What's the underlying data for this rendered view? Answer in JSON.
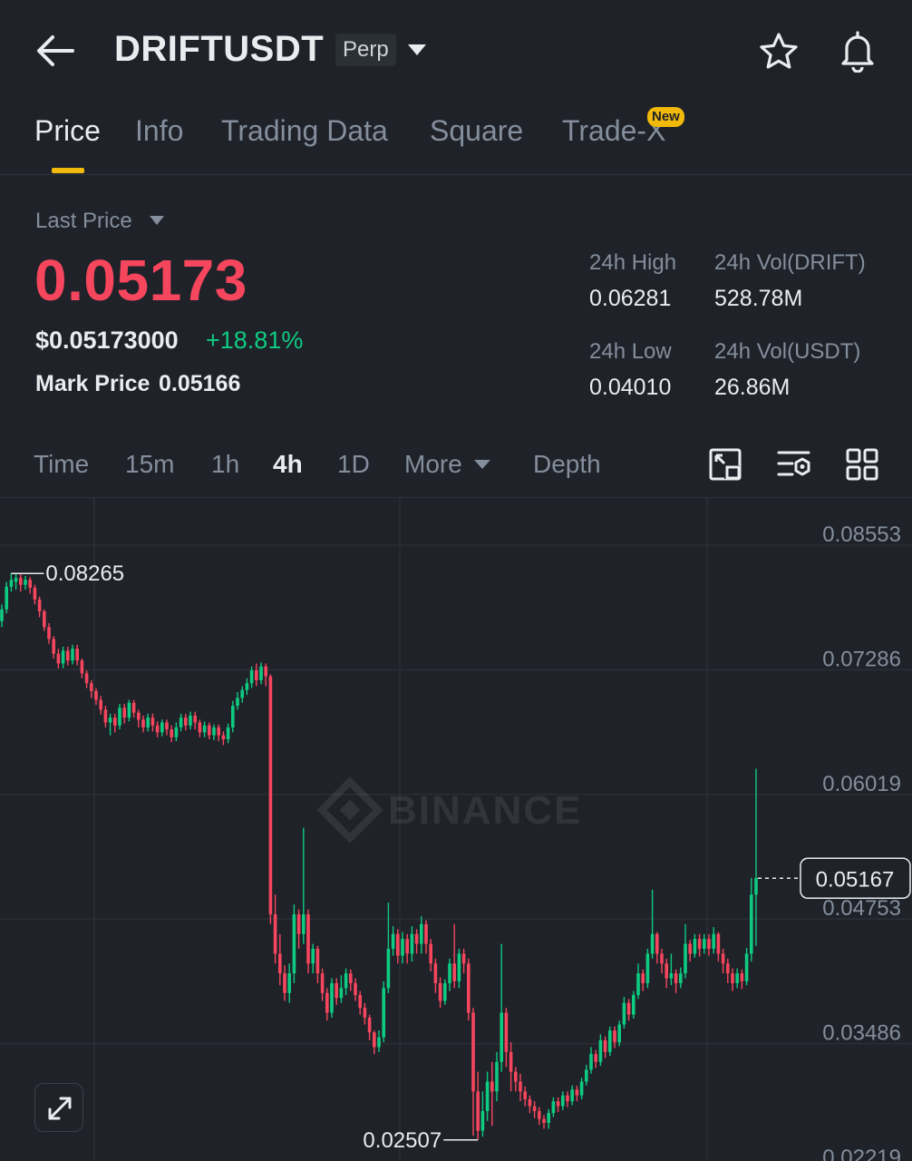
{
  "header": {
    "symbol": "DRIFTUSDT",
    "contract_type": "Perp"
  },
  "tabs": [
    {
      "label": "Price",
      "active": true
    },
    {
      "label": "Info"
    },
    {
      "label": "Trading Data"
    },
    {
      "label": "Square"
    },
    {
      "label": "Trade-X",
      "badge": "New"
    }
  ],
  "price": {
    "last_price_label": "Last Price",
    "last_price": "0.05173",
    "usd_price": "$0.05173000",
    "change_pct": "+18.81%",
    "mark_price_label": "Mark Price",
    "mark_price": "0.05166"
  },
  "stats": {
    "high_label": "24h High",
    "high": "0.06281",
    "vol_base_label": "24h Vol(DRIFT)",
    "vol_base": "528.78M",
    "low_label": "24h Low",
    "low": "0.04010",
    "vol_quote_label": "24h Vol(USDT)",
    "vol_quote": "26.86M"
  },
  "timeframes": {
    "time": "Time",
    "m15": "15m",
    "h1": "1h",
    "h4": "4h",
    "d1": "1D",
    "more": "More",
    "depth": "Depth",
    "active": "4h"
  },
  "toolbar_icons": [
    "chart-settings-icon",
    "indicator-settings-icon",
    "layout-grid-icon"
  ],
  "colors": {
    "background": "#1f2229",
    "up": "#0ecb81",
    "down": "#f6465d",
    "accent": "#f0b90b",
    "muted": "#848e9c"
  },
  "chart_data": {
    "type": "candlestick",
    "interval": "4h",
    "watermark": "BINANCE",
    "y_ticks": [
      "0.08553",
      "0.07286",
      "0.06019",
      "0.04753",
      "0.03486",
      "0.02219"
    ],
    "ylim": [
      0.02219,
      0.08553
    ],
    "high_marker": "0.08265",
    "low_marker": "0.02507",
    "current_price_tag": "0.05167",
    "candles": [
      [
        0.0778,
        0.079,
        0.0772,
        0.0795
      ],
      [
        0.079,
        0.0813,
        0.0786,
        0.0818
      ],
      [
        0.0813,
        0.082,
        0.0808,
        0.0827
      ],
      [
        0.0818,
        0.0822,
        0.081,
        0.0827
      ],
      [
        0.0822,
        0.0815,
        0.0808,
        0.0826
      ],
      [
        0.0815,
        0.082,
        0.081,
        0.0824
      ],
      [
        0.082,
        0.0812,
        0.0806,
        0.0823
      ],
      [
        0.0812,
        0.08,
        0.0795,
        0.0815
      ],
      [
        0.08,
        0.0788,
        0.0782,
        0.0803
      ],
      [
        0.0788,
        0.0772,
        0.0768,
        0.079
      ],
      [
        0.0772,
        0.076,
        0.0755,
        0.0776
      ],
      [
        0.076,
        0.0745,
        0.074,
        0.0763
      ],
      [
        0.0745,
        0.0735,
        0.073,
        0.075
      ],
      [
        0.0735,
        0.0748,
        0.073,
        0.0752
      ],
      [
        0.0748,
        0.0738,
        0.0733,
        0.0752
      ],
      [
        0.0738,
        0.075,
        0.0734,
        0.0754
      ],
      [
        0.075,
        0.0738,
        0.0733,
        0.0754
      ],
      [
        0.0738,
        0.0725,
        0.072,
        0.074
      ],
      [
        0.0725,
        0.0715,
        0.071,
        0.0728
      ],
      [
        0.0715,
        0.0707,
        0.07,
        0.0718
      ],
      [
        0.0707,
        0.0698,
        0.0693,
        0.071
      ],
      [
        0.0698,
        0.0688,
        0.0683,
        0.0702
      ],
      [
        0.0688,
        0.0675,
        0.067,
        0.0692
      ],
      [
        0.0675,
        0.068,
        0.0662,
        0.0684
      ],
      [
        0.068,
        0.0672,
        0.0665,
        0.0684
      ],
      [
        0.0672,
        0.069,
        0.0668,
        0.0694
      ],
      [
        0.069,
        0.068,
        0.0674,
        0.0694
      ],
      [
        0.068,
        0.0695,
        0.0676,
        0.0698
      ],
      [
        0.0695,
        0.0685,
        0.068,
        0.0698
      ],
      [
        0.0685,
        0.0678,
        0.067,
        0.0688
      ],
      [
        0.0678,
        0.067,
        0.0665,
        0.0682
      ],
      [
        0.067,
        0.068,
        0.0666,
        0.0684
      ],
      [
        0.068,
        0.0672,
        0.0666,
        0.0684
      ],
      [
        0.0672,
        0.0665,
        0.066,
        0.0676
      ],
      [
        0.0665,
        0.0675,
        0.0661,
        0.0678
      ],
      [
        0.0675,
        0.0668,
        0.0662,
        0.0678
      ],
      [
        0.0668,
        0.066,
        0.0655,
        0.0672
      ],
      [
        0.066,
        0.067,
        0.0656,
        0.0675
      ],
      [
        0.067,
        0.068,
        0.0666,
        0.0684
      ],
      [
        0.068,
        0.0672,
        0.0667,
        0.0684
      ],
      [
        0.0672,
        0.0682,
        0.0668,
        0.0686
      ],
      [
        0.0682,
        0.0675,
        0.0668,
        0.0686
      ],
      [
        0.0675,
        0.0665,
        0.066,
        0.0678
      ],
      [
        0.0665,
        0.0672,
        0.066,
        0.0676
      ],
      [
        0.0672,
        0.0662,
        0.0658,
        0.0675
      ],
      [
        0.0662,
        0.067,
        0.0657,
        0.0673
      ],
      [
        0.067,
        0.0662,
        0.0656,
        0.0673
      ],
      [
        0.0662,
        0.0658,
        0.0652,
        0.0666
      ],
      [
        0.0658,
        0.067,
        0.0654,
        0.0674
      ],
      [
        0.067,
        0.0692,
        0.0665,
        0.0697
      ],
      [
        0.0692,
        0.07,
        0.0688,
        0.0706
      ],
      [
        0.07,
        0.0708,
        0.0695,
        0.0712
      ],
      [
        0.0708,
        0.0715,
        0.0703,
        0.072
      ],
      [
        0.0715,
        0.0728,
        0.071,
        0.0732
      ],
      [
        0.0728,
        0.0718,
        0.0712,
        0.0735
      ],
      [
        0.0718,
        0.0732,
        0.0714,
        0.0736
      ],
      [
        0.0732,
        0.0722,
        0.0712,
        0.0735
      ],
      [
        0.0722,
        0.048,
        0.047,
        0.0724
      ],
      [
        0.048,
        0.044,
        0.043,
        0.05
      ],
      [
        0.044,
        0.042,
        0.0408,
        0.046
      ],
      [
        0.042,
        0.04,
        0.0392,
        0.0428
      ],
      [
        0.04,
        0.042,
        0.039,
        0.043
      ],
      [
        0.042,
        0.048,
        0.041,
        0.049
      ],
      [
        0.048,
        0.046,
        0.0445,
        0.0485
      ],
      [
        0.046,
        0.048,
        0.045,
        0.0568
      ],
      [
        0.048,
        0.043,
        0.042,
        0.0485
      ],
      [
        0.043,
        0.0445,
        0.042,
        0.045
      ],
      [
        0.0445,
        0.042,
        0.041,
        0.0448
      ],
      [
        0.042,
        0.04,
        0.0392,
        0.0425
      ],
      [
        0.04,
        0.038,
        0.0372,
        0.0405
      ],
      [
        0.038,
        0.041,
        0.0375,
        0.0415
      ],
      [
        0.041,
        0.0395,
        0.0388,
        0.0415
      ],
      [
        0.0395,
        0.0405,
        0.039,
        0.0418
      ],
      [
        0.0405,
        0.042,
        0.0398,
        0.0425
      ],
      [
        0.042,
        0.041,
        0.0402,
        0.0424
      ],
      [
        0.041,
        0.0398,
        0.0392,
        0.0415
      ],
      [
        0.0398,
        0.0385,
        0.0378,
        0.0402
      ],
      [
        0.0385,
        0.0375,
        0.0368,
        0.039
      ],
      [
        0.0375,
        0.036,
        0.0352,
        0.0378
      ],
      [
        0.036,
        0.0345,
        0.0338,
        0.0362
      ],
      [
        0.0345,
        0.0355,
        0.034,
        0.0362
      ],
      [
        0.0355,
        0.0405,
        0.035,
        0.0412
      ],
      [
        0.0405,
        0.0445,
        0.04,
        0.0492
      ],
      [
        0.0445,
        0.046,
        0.0438,
        0.0468
      ],
      [
        0.046,
        0.0438,
        0.043,
        0.0465
      ],
      [
        0.0438,
        0.0455,
        0.043,
        0.0462
      ],
      [
        0.0455,
        0.044,
        0.043,
        0.046
      ],
      [
        0.044,
        0.046,
        0.0432,
        0.0468
      ],
      [
        0.046,
        0.045,
        0.044,
        0.0465
      ],
      [
        0.045,
        0.047,
        0.044,
        0.0478
      ],
      [
        0.047,
        0.045,
        0.044,
        0.0474
      ],
      [
        0.045,
        0.043,
        0.0422,
        0.0455
      ],
      [
        0.043,
        0.041,
        0.04,
        0.0435
      ],
      [
        0.041,
        0.0392,
        0.0385,
        0.0416
      ],
      [
        0.0392,
        0.041,
        0.0388,
        0.0414
      ],
      [
        0.041,
        0.043,
        0.0402,
        0.0435
      ],
      [
        0.043,
        0.0412,
        0.0405,
        0.047
      ],
      [
        0.0412,
        0.044,
        0.0405,
        0.0445
      ],
      [
        0.044,
        0.043,
        0.042,
        0.0445
      ],
      [
        0.043,
        0.038,
        0.0372,
        0.0435
      ],
      [
        0.038,
        0.03,
        0.0255,
        0.0385
      ],
      [
        0.03,
        0.026,
        0.0251,
        0.032
      ],
      [
        0.026,
        0.028,
        0.0254,
        0.03
      ],
      [
        0.028,
        0.031,
        0.027,
        0.032
      ],
      [
        0.031,
        0.03,
        0.0265,
        0.033
      ],
      [
        0.03,
        0.033,
        0.029,
        0.034
      ],
      [
        0.033,
        0.038,
        0.032,
        0.045
      ],
      [
        0.038,
        0.034,
        0.0325,
        0.0385
      ],
      [
        0.034,
        0.032,
        0.03,
        0.035
      ],
      [
        0.032,
        0.031,
        0.03,
        0.0325
      ],
      [
        0.031,
        0.03,
        0.029,
        0.0318
      ],
      [
        0.03,
        0.0292,
        0.0285,
        0.0305
      ],
      [
        0.0292,
        0.0285,
        0.0278,
        0.0296
      ],
      [
        0.0285,
        0.028,
        0.0273,
        0.029
      ],
      [
        0.028,
        0.0272,
        0.0266,
        0.0284
      ],
      [
        0.0272,
        0.0268,
        0.0262,
        0.0276
      ],
      [
        0.0268,
        0.0278,
        0.0262,
        0.0282
      ],
      [
        0.0278,
        0.029,
        0.0274,
        0.0294
      ],
      [
        0.029,
        0.0285,
        0.0279,
        0.0294
      ],
      [
        0.0285,
        0.0296,
        0.0281,
        0.03
      ],
      [
        0.0296,
        0.029,
        0.0284,
        0.03
      ],
      [
        0.029,
        0.0302,
        0.0286,
        0.0306
      ],
      [
        0.0302,
        0.0296,
        0.029,
        0.0306
      ],
      [
        0.0296,
        0.031,
        0.0292,
        0.0314
      ],
      [
        0.031,
        0.0322,
        0.0306,
        0.0327
      ],
      [
        0.0322,
        0.0338,
        0.0318,
        0.0345
      ],
      [
        0.0338,
        0.033,
        0.0324,
        0.0342
      ],
      [
        0.033,
        0.0352,
        0.0326,
        0.0358
      ],
      [
        0.0352,
        0.034,
        0.0334,
        0.0356
      ],
      [
        0.034,
        0.0362,
        0.0336,
        0.0366
      ],
      [
        0.0362,
        0.035,
        0.0344,
        0.0366
      ],
      [
        0.035,
        0.0368,
        0.0346,
        0.0372
      ],
      [
        0.0368,
        0.039,
        0.0364,
        0.0396
      ],
      [
        0.039,
        0.0378,
        0.0372,
        0.0394
      ],
      [
        0.0378,
        0.0398,
        0.0374,
        0.0402
      ],
      [
        0.0398,
        0.042,
        0.0394,
        0.043
      ],
      [
        0.042,
        0.041,
        0.0402,
        0.0424
      ],
      [
        0.041,
        0.044,
        0.0405,
        0.0445
      ],
      [
        0.044,
        0.046,
        0.0435,
        0.0505
      ],
      [
        0.046,
        0.044,
        0.043,
        0.0462
      ],
      [
        0.044,
        0.043,
        0.042,
        0.0445
      ],
      [
        0.043,
        0.0415,
        0.0405,
        0.0435
      ],
      [
        0.0415,
        0.042,
        0.0408,
        0.044
      ],
      [
        0.042,
        0.041,
        0.04,
        0.0424
      ],
      [
        0.041,
        0.042,
        0.0405,
        0.0426
      ],
      [
        0.042,
        0.045,
        0.0415,
        0.047
      ],
      [
        0.045,
        0.044,
        0.0432,
        0.0454
      ],
      [
        0.044,
        0.0455,
        0.0436,
        0.046
      ],
      [
        0.0455,
        0.0445,
        0.0437,
        0.046
      ],
      [
        0.0445,
        0.0455,
        0.044,
        0.046
      ],
      [
        0.0455,
        0.0445,
        0.0438,
        0.046
      ],
      [
        0.0445,
        0.046,
        0.044,
        0.0467
      ],
      [
        0.046,
        0.044,
        0.0432,
        0.0462
      ],
      [
        0.044,
        0.043,
        0.042,
        0.0445
      ],
      [
        0.043,
        0.042,
        0.041,
        0.0435
      ],
      [
        0.042,
        0.041,
        0.0402,
        0.0425
      ],
      [
        0.041,
        0.042,
        0.0405,
        0.0425
      ],
      [
        0.042,
        0.0412,
        0.0404,
        0.0424
      ],
      [
        0.0412,
        0.044,
        0.0408,
        0.0446
      ],
      [
        0.044,
        0.05,
        0.0432,
        0.0517
      ],
      [
        0.05,
        0.0517,
        0.0448,
        0.0628
      ]
    ]
  }
}
